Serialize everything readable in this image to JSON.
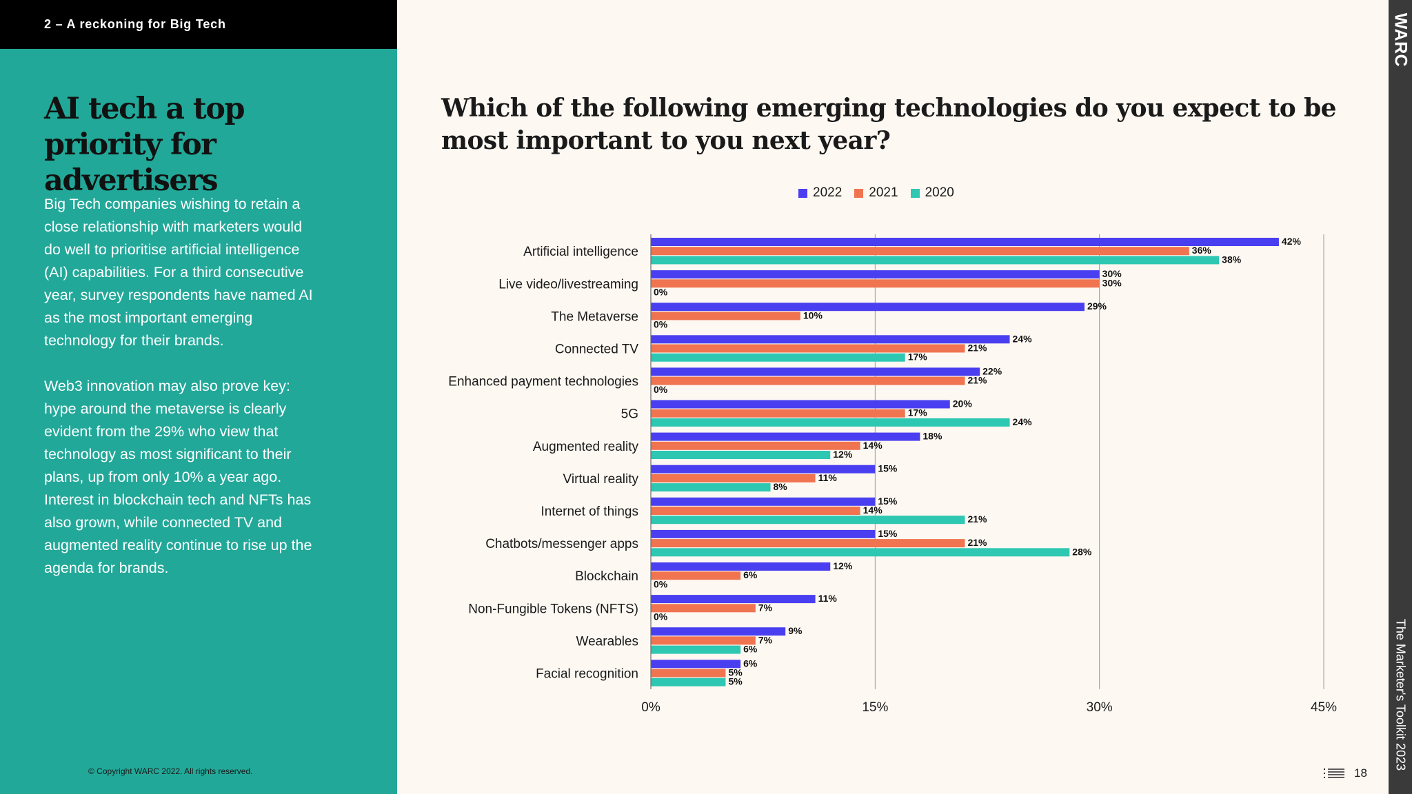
{
  "section": {
    "label": "2 – A reckoning for Big Tech"
  },
  "headline": "AI tech a top priority for advertisers",
  "body": {
    "paragraph1": "Big Tech companies wishing to retain a close relationship with marketers would do well to prioritise artificial intelligence (AI) capabilities. For a third consecutive year, survey respondents have named AI as the most important emerging technology for their brands.",
    "paragraph2": "Web3 innovation may also prove key: hype around the metaverse is clearly evident from the 29% who view that technology as most significant to their plans, up from only 10% a year ago. Interest in blockchain tech and NFTs has also grown, while connected TV and augmented reality continue to rise up the agenda for brands."
  },
  "copyright": "© Copyright WARC 2022. All rights reserved.",
  "brand": {
    "logo": "WARC",
    "publication": "The Marketer's Toolkit 2023"
  },
  "footer": {
    "page_number": "18",
    "toc_icon": "list-icon"
  },
  "colors": {
    "s2022": "#4a3ff0",
    "s2021": "#f07450",
    "s2020": "#2ec7b2",
    "panel": "#22a899"
  },
  "chart_data": {
    "type": "bar",
    "orientation": "horizontal",
    "title": "Which of the following emerging technologies do you expect to be most important to you next year?",
    "categories": [
      "Artificial intelligence",
      "Live video/livestreaming",
      "The Metaverse",
      "Connected TV",
      "Enhanced payment technologies",
      "5G",
      "Augmented reality",
      "Virtual reality",
      "Internet of things",
      "Chatbots/messenger apps",
      "Blockchain",
      "Non-Fungible Tokens (NFTS)",
      "Wearables",
      "Facial recognition"
    ],
    "series": [
      {
        "name": "2022",
        "color": "#4a3ff0",
        "values": [
          42,
          30,
          29,
          24,
          22,
          20,
          18,
          15,
          15,
          15,
          12,
          11,
          9,
          6
        ]
      },
      {
        "name": "2021",
        "color": "#f07450",
        "values": [
          36,
          30,
          10,
          21,
          21,
          17,
          14,
          11,
          14,
          21,
          6,
          7,
          7,
          5
        ]
      },
      {
        "name": "2020",
        "color": "#2ec7b2",
        "values": [
          38,
          0,
          0,
          17,
          0,
          24,
          12,
          8,
          21,
          28,
          0,
          0,
          6,
          5
        ]
      }
    ],
    "xlim": [
      0,
      45
    ],
    "xticks": [
      0,
      15,
      30,
      45
    ],
    "tick_labels": [
      "0%",
      "15%",
      "30%",
      "45%"
    ],
    "value_suffix": "%",
    "grid": true,
    "legend": "top"
  }
}
